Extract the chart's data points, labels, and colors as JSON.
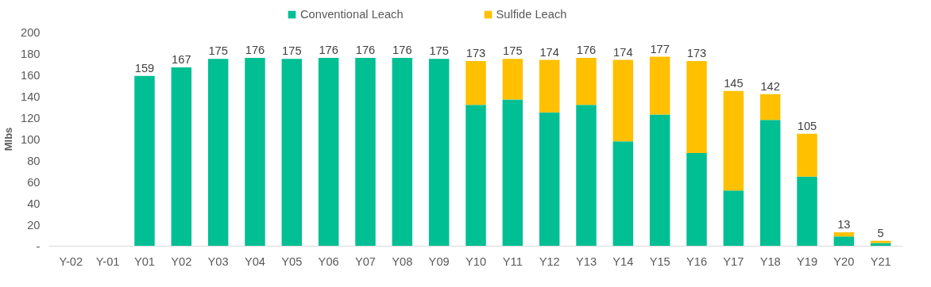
{
  "chart_data": {
    "type": "bar",
    "stacked": true,
    "ylabel": "Mlbs",
    "categories": [
      "Y-02",
      "Y-01",
      "Y01",
      "Y02",
      "Y03",
      "Y04",
      "Y05",
      "Y06",
      "Y07",
      "Y08",
      "Y09",
      "Y10",
      "Y11",
      "Y12",
      "Y13",
      "Y14",
      "Y15",
      "Y16",
      "Y17",
      "Y18",
      "Y19",
      "Y20",
      "Y21"
    ],
    "series": [
      {
        "name": "Conventional Leach",
        "color": "#00bf93",
        "values": [
          null,
          null,
          159,
          167,
          175,
          176,
          175,
          176,
          176,
          176,
          175,
          132,
          137,
          125,
          132,
          98,
          123,
          87,
          52,
          118,
          65,
          9,
          3
        ]
      },
      {
        "name": "Sulfide Leach",
        "color": "#ffc000",
        "values": [
          null,
          null,
          null,
          null,
          null,
          null,
          null,
          null,
          null,
          null,
          null,
          41,
          38,
          49,
          44,
          76,
          54,
          86,
          93,
          24,
          40,
          4,
          2
        ]
      }
    ],
    "totals": [
      null,
      null,
      "159",
      "167",
      "175",
      "176",
      "175",
      "176",
      "176",
      "176",
      "175",
      "173",
      "175",
      "174",
      "176",
      "174",
      "177",
      "173",
      "145",
      "142",
      "105",
      "13",
      "5"
    ],
    "ylim": [
      0,
      200
    ],
    "yticks": [
      {
        "value": 0,
        "label": "-"
      },
      20,
      40,
      60,
      80,
      100,
      120,
      140,
      160,
      180,
      200
    ],
    "grid": false,
    "legend": "top"
  }
}
